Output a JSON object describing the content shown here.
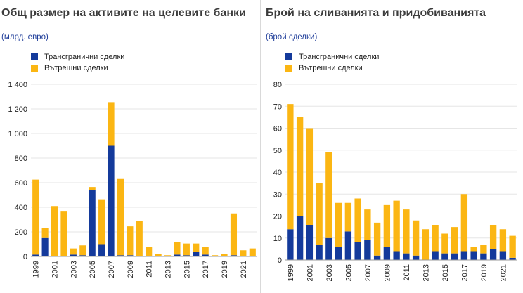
{
  "colors": {
    "cross_border": "#143a9b",
    "domestic": "#fbb613",
    "axis_text": "#222222",
    "grid": "#e6e6e6",
    "title": "#3c3c3c",
    "unit": "#1f3d99"
  },
  "chart_data": [
    {
      "type": "bar",
      "stacked": true,
      "title": "Общ размер на активите на целевите банки",
      "unit": "(млрд. евро)",
      "categories": [
        "1999",
        "2000",
        "2001",
        "2002",
        "2003",
        "2004",
        "2005",
        "2006",
        "2007",
        "2008",
        "2009",
        "2010",
        "2011",
        "2012",
        "2013",
        "2014",
        "2015",
        "2016",
        "2017",
        "2018",
        "2019",
        "2020",
        "2021",
        "2022"
      ],
      "x_tick_labels": [
        "1999",
        "2001",
        "2003",
        "2005",
        "2007",
        "2009",
        "2011",
        "2013",
        "2015",
        "2017",
        "2019",
        "2021"
      ],
      "ylim": [
        0,
        1400
      ],
      "y_ticks": [
        0,
        200,
        400,
        600,
        800,
        1000,
        1200,
        1400
      ],
      "y_tick_labels": [
        "0",
        "200",
        "400",
        "600",
        "800",
        "1 000",
        "1 200",
        "1 400"
      ],
      "legend": [
        "Трансгранични сделки",
        "Вътрешни сделки"
      ],
      "series": [
        {
          "name": "Трансгранични сделки",
          "values": [
            15,
            150,
            5,
            5,
            15,
            10,
            540,
            100,
            900,
            10,
            10,
            5,
            5,
            5,
            5,
            15,
            10,
            40,
            15,
            5,
            5,
            10,
            5,
            5
          ]
        },
        {
          "name": "Вътрешни сделки",
          "values": [
            610,
            80,
            405,
            360,
            50,
            80,
            25,
            365,
            355,
            620,
            235,
            285,
            75,
            15,
            5,
            105,
            95,
            65,
            65,
            5,
            15,
            340,
            45,
            60
          ]
        }
      ]
    },
    {
      "type": "bar",
      "stacked": true,
      "title": "Брой на сливанията и придобиванията",
      "unit": "(брой сделки)",
      "categories": [
        "1999",
        "2000",
        "2001",
        "2002",
        "2003",
        "2004",
        "2005",
        "2006",
        "2007",
        "2008",
        "2009",
        "2010",
        "2011",
        "2012",
        "2013",
        "2014",
        "2015",
        "2016",
        "2017",
        "2018",
        "2019",
        "2020",
        "2021",
        "2022"
      ],
      "x_tick_labels": [
        "1999",
        "2001",
        "2003",
        "2005",
        "2007",
        "2009",
        "2011",
        "2013",
        "2015",
        "2017",
        "2019",
        "2021"
      ],
      "ylim": [
        0,
        80
      ],
      "y_ticks": [
        0,
        10,
        20,
        30,
        40,
        50,
        60,
        70,
        80
      ],
      "y_tick_labels": [
        "0",
        "10",
        "20",
        "30",
        "40",
        "50",
        "60",
        "70",
        "80"
      ],
      "legend": [
        "Трансгранични сделки",
        "Вътрешни сделки"
      ],
      "series": [
        {
          "name": "Трансгранични сделки",
          "values": [
            14,
            20,
            16,
            7,
            10,
            6,
            13,
            8,
            9,
            2,
            6,
            4,
            3,
            2,
            0,
            4,
            3,
            3,
            4,
            4,
            3,
            5,
            4,
            1
          ]
        },
        {
          "name": "Вътрешни сделки",
          "values": [
            57,
            45,
            44,
            28,
            39,
            20,
            13,
            20,
            14,
            15,
            19,
            23,
            20,
            16,
            14,
            12,
            9,
            12,
            26,
            2,
            4,
            11,
            10,
            10
          ]
        }
      ]
    }
  ]
}
